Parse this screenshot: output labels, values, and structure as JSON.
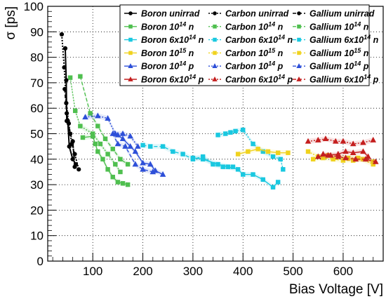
{
  "chart_data": {
    "type": "scatter",
    "xlabel": "Bias Voltage [V]",
    "ylabel": "σ [ps]",
    "xlim": [
      10,
      680
    ],
    "ylim": [
      0,
      100
    ],
    "x_ticks": [
      100,
      200,
      300,
      400,
      500,
      600
    ],
    "y_ticks": [
      0,
      10,
      20,
      30,
      40,
      50,
      60,
      70,
      80,
      90,
      100
    ],
    "grid": true,
    "legend_position": "top-right",
    "series": [
      {
        "name": "Boron unirrad",
        "sup": "",
        "suffix": "",
        "sensor": "Boron",
        "group": "unirrad",
        "color": "#000000",
        "marker": "circle",
        "line": "solid",
        "points": [
          [
            45,
            83.5
          ],
          [
            47,
            71
          ],
          [
            48,
            55
          ],
          [
            50,
            55
          ],
          [
            53,
            45
          ],
          [
            60,
            40
          ],
          [
            66,
            38
          ]
        ]
      },
      {
        "name": "Carbon unirrad",
        "sup": "",
        "suffix": "",
        "sensor": "Carbon",
        "group": "unirrad",
        "color": "#000000",
        "marker": "circle",
        "line": "dotted",
        "points": [
          [
            38,
            89
          ],
          [
            43,
            76
          ],
          [
            47,
            62
          ],
          [
            52,
            54
          ],
          [
            58,
            46
          ],
          [
            64,
            42
          ],
          [
            72,
            36
          ]
        ]
      },
      {
        "name": "Gallium unirrad",
        "sup": "",
        "suffix": "",
        "sensor": "Gallium",
        "group": "unirrad",
        "color": "#000000",
        "marker": "circle",
        "line": "dashed",
        "points": [
          [
            44,
            67.5
          ],
          [
            48,
            58
          ],
          [
            50,
            55
          ],
          [
            55,
            50
          ],
          [
            60,
            47
          ],
          [
            64,
            37
          ]
        ]
      },
      {
        "name": "Boron 10",
        "sup": "14",
        "suffix": " n",
        "sensor": "Boron",
        "group": "1e14n",
        "color": "#4fbf4f",
        "marker": "square",
        "line": "solid",
        "points": [
          [
            80,
            48.5
          ],
          [
            100,
            49
          ],
          [
            105,
            46
          ],
          [
            110,
            43
          ],
          [
            120,
            40
          ],
          [
            130,
            36
          ],
          [
            140,
            33
          ],
          [
            150,
            31
          ],
          [
            160,
            30.5
          ],
          [
            170,
            30
          ]
        ]
      },
      {
        "name": "Carbon 10",
        "sup": "14",
        "suffix": " n",
        "sensor": "Carbon",
        "group": "1e14n",
        "color": "#4fbf4f",
        "marker": "square",
        "line": "dotted",
        "points": [
          [
            55,
            72
          ],
          [
            65,
            59
          ],
          [
            75,
            53
          ],
          [
            100,
            50
          ],
          [
            115,
            46
          ],
          [
            130,
            42
          ],
          [
            145,
            38
          ],
          [
            155,
            35
          ]
        ]
      },
      {
        "name": "Gallium 10",
        "sup": "14",
        "suffix": " n",
        "sensor": "Gallium",
        "group": "1e14n",
        "color": "#4fbf4f",
        "marker": "square",
        "line": "dashed",
        "points": [
          [
            75,
            72.5
          ],
          [
            95,
            58
          ],
          [
            110,
            53
          ],
          [
            125,
            48
          ],
          [
            140,
            44
          ],
          [
            155,
            40
          ],
          [
            170,
            38
          ]
        ]
      },
      {
        "name": "Boron 6x10",
        "sup": "14",
        "suffix": " n",
        "sensor": "Boron",
        "group": "6e14n",
        "color": "#19c8e0",
        "marker": "square",
        "line": "solid",
        "points": [
          [
            300,
            40.5
          ],
          [
            320,
            40
          ],
          [
            350,
            38
          ],
          [
            370,
            37
          ],
          [
            390,
            36
          ],
          [
            400,
            34
          ],
          [
            420,
            34
          ],
          [
            440,
            32
          ],
          [
            460,
            29
          ],
          [
            470,
            31
          ]
        ]
      },
      {
        "name": "Carbon 6x10",
        "sup": "14",
        "suffix": " n",
        "sensor": "Carbon",
        "group": "6e14n",
        "color": "#19c8e0",
        "marker": "square",
        "line": "dotted",
        "points": [
          [
            350,
            49.5
          ],
          [
            365,
            50
          ],
          [
            375,
            50.5
          ],
          [
            385,
            51
          ],
          [
            400,
            51.5
          ],
          [
            420,
            46
          ],
          [
            440,
            43
          ],
          [
            460,
            41
          ],
          [
            475,
            40
          ],
          [
            480,
            36
          ]
        ]
      },
      {
        "name": "Gallium 6x10",
        "sup": "14",
        "suffix": " n",
        "sensor": "Gallium",
        "group": "6e14n",
        "color": "#19c8e0",
        "marker": "square",
        "line": "dashed",
        "points": [
          [
            200,
            45.5
          ],
          [
            215,
            45
          ],
          [
            240,
            45
          ],
          [
            260,
            43
          ],
          [
            280,
            42
          ],
          [
            300,
            40
          ],
          [
            320,
            41
          ],
          [
            340,
            38
          ],
          [
            360,
            37
          ],
          [
            380,
            37
          ]
        ]
      },
      {
        "name": "Boron 10",
        "sup": "15",
        "suffix": " n",
        "sensor": "Boron",
        "group": "1e15n",
        "color": "#f0d21e",
        "marker": "square",
        "line": "solid",
        "points": [
          [
            390,
            42
          ],
          [
            410,
            43
          ],
          [
            430,
            44
          ],
          [
            450,
            43
          ],
          [
            470,
            42.5
          ],
          [
            490,
            42.5
          ]
        ]
      },
      {
        "name": "Carbon 10",
        "sup": "15",
        "suffix": " n",
        "sensor": "Carbon",
        "group": "1e15n",
        "color": "#f0d21e",
        "marker": "square",
        "line": "dotted",
        "points": [
          [
            530,
            43
          ],
          [
            550,
            41
          ],
          [
            570,
            41.5
          ],
          [
            590,
            41
          ],
          [
            610,
            40.5
          ],
          [
            630,
            40.5
          ],
          [
            660,
            38
          ]
        ]
      },
      {
        "name": "Gallium 10",
        "sup": "15",
        "suffix": " n",
        "sensor": "Gallium",
        "group": "1e15n",
        "color": "#f0d21e",
        "marker": "square",
        "line": "dashed",
        "points": [
          [
            540,
            40
          ],
          [
            560,
            40.5
          ],
          [
            580,
            40
          ],
          [
            600,
            39.5
          ],
          [
            620,
            39.5
          ],
          [
            640,
            40
          ],
          [
            660,
            39
          ]
        ]
      },
      {
        "name": "Boron 10",
        "sup": "14",
        "suffix": " p",
        "sensor": "Boron",
        "group": "1e14p",
        "color": "#2d4fd8",
        "marker": "triangle",
        "line": "solid",
        "points": [
          [
            150,
            49.5
          ],
          [
            160,
            48
          ],
          [
            175,
            45
          ],
          [
            185,
            43
          ],
          [
            200,
            38.5
          ],
          [
            215,
            38
          ],
          [
            225,
            35.5
          ],
          [
            240,
            34
          ]
        ]
      },
      {
        "name": "Carbon 10",
        "sup": "14",
        "suffix": " p",
        "sensor": "Carbon",
        "group": "1e14p",
        "color": "#2d4fd8",
        "marker": "triangle",
        "line": "dotted",
        "points": [
          [
            85,
            56.5
          ],
          [
            110,
            57
          ],
          [
            130,
            56
          ],
          [
            145,
            50
          ],
          [
            160,
            50
          ],
          [
            175,
            49
          ],
          [
            190,
            45
          ]
        ]
      },
      {
        "name": "Gallium 10",
        "sup": "14",
        "suffix": " p",
        "sensor": "Gallium",
        "group": "1e14p",
        "color": "#2d4fd8",
        "marker": "triangle",
        "line": "dashed",
        "points": [
          [
            140,
            50
          ],
          [
            150,
            46
          ],
          [
            165,
            45
          ],
          [
            185,
            38
          ],
          [
            200,
            36
          ],
          [
            220,
            35
          ]
        ]
      },
      {
        "name": "Boron 6x10",
        "sup": "14",
        "suffix": " p",
        "sensor": "Boron",
        "group": "6e14p",
        "color": "#c41e1e",
        "marker": "triangle",
        "line": "solid",
        "points": [
          [
            550,
            41
          ],
          [
            570,
            41.5
          ],
          [
            590,
            42
          ],
          [
            605,
            43
          ],
          [
            620,
            42.5
          ],
          [
            640,
            43
          ],
          [
            650,
            41
          ]
        ]
      },
      {
        "name": "Carbon 6x10",
        "sup": "14",
        "suffix": " p",
        "sensor": "Carbon",
        "group": "6e14p",
        "color": "#c41e1e",
        "marker": "triangle",
        "line": "dotted",
        "points": [
          [
            530,
            47
          ],
          [
            550,
            47.5
          ],
          [
            565,
            48
          ],
          [
            585,
            47
          ],
          [
            600,
            47
          ],
          [
            620,
            46
          ],
          [
            640,
            46.5
          ],
          [
            660,
            47.5
          ]
        ]
      },
      {
        "name": "Gallium 6x10",
        "sup": "14",
        "suffix": " p",
        "sensor": "Gallium",
        "group": "6e14p",
        "color": "#c41e1e",
        "marker": "triangle",
        "line": "dashed",
        "points": [
          [
            560,
            42
          ],
          [
            575,
            41.5
          ],
          [
            590,
            41
          ],
          [
            605,
            40.5
          ],
          [
            625,
            40
          ],
          [
            645,
            40
          ],
          [
            665,
            39
          ]
        ]
      }
    ]
  }
}
